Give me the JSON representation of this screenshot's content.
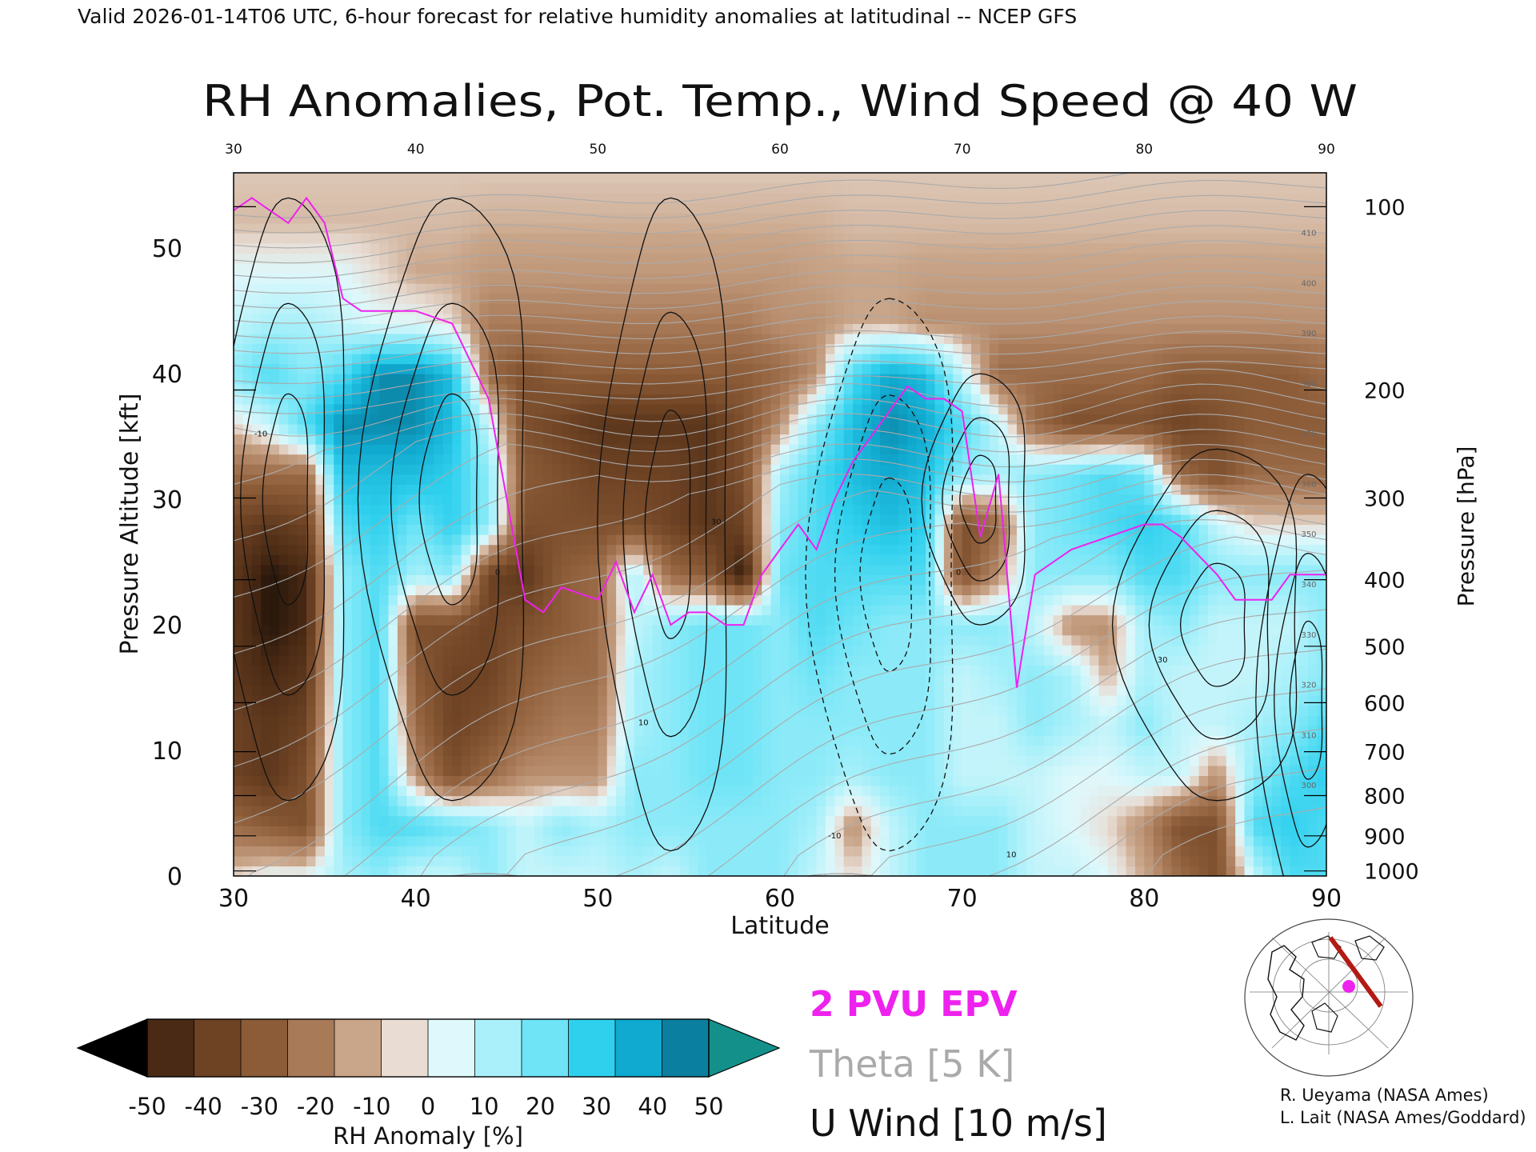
{
  "header": {
    "caption": "Valid 2026-01-14T06 UTC, 6-hour forecast for relative humidity anomalies at latitudinal -- NCEP GFS"
  },
  "chart_data": {
    "type": "heatmap",
    "title": "RH Anomalies, Pot. Temp., Wind Speed @ 40 W",
    "xlabel": "Latitude",
    "ylabel_left": "Pressure Altitude [kft]",
    "ylabel_right": "Pressure [hPa]",
    "xlim": [
      30,
      90
    ],
    "ylim": [
      0,
      56
    ],
    "x_ticks": [
      "30",
      "40",
      "50",
      "60",
      "70",
      "80",
      "90"
    ],
    "y_ticks": [
      "0",
      "10",
      "20",
      "30",
      "40",
      "50"
    ],
    "pressure_ticks": [
      {
        "label": "100",
        "kft": 53.3
      },
      {
        "label": "200",
        "kft": 38.7
      },
      {
        "label": "300",
        "kft": 30.1
      },
      {
        "label": "400",
        "kft": 23.6
      },
      {
        "label": "500",
        "kft": 18.3
      },
      {
        "label": "600",
        "kft": 13.8
      },
      {
        "label": "700",
        "kft": 9.9
      },
      {
        "label": "800",
        "kft": 6.4
      },
      {
        "label": "900",
        "kft": 3.2
      },
      {
        "label": "1000",
        "kft": 0.4
      }
    ],
    "rh_field": {
      "description_free": true,
      "lat": [
        30,
        32,
        34,
        36,
        38,
        40,
        42,
        44,
        46,
        48,
        50,
        52,
        54,
        56,
        58,
        60,
        62,
        64,
        66,
        68,
        70,
        72,
        74,
        76,
        78,
        80,
        82,
        84,
        86,
        88,
        90
      ],
      "kft": [
        0,
        4,
        8,
        12,
        16,
        20,
        24,
        28,
        32,
        36,
        40,
        44,
        48,
        52,
        56
      ],
      "values": [
        [
          0,
          5,
          5,
          15,
          20,
          10,
          10,
          20,
          10,
          10,
          10,
          15,
          10,
          20,
          20,
          20,
          10,
          0,
          10,
          20,
          20,
          20,
          10,
          10,
          5,
          -5,
          -20,
          -30,
          10,
          30,
          30
        ],
        [
          -20,
          -25,
          -30,
          20,
          30,
          30,
          25,
          20,
          10,
          20,
          15,
          20,
          20,
          20,
          20,
          20,
          15,
          -10,
          10,
          20,
          20,
          20,
          10,
          5,
          0,
          -10,
          -30,
          -30,
          30,
          35,
          30
        ],
        [
          -35,
          -40,
          -30,
          20,
          30,
          -10,
          -30,
          -20,
          -10,
          -10,
          -10,
          20,
          20,
          25,
          25,
          20,
          20,
          15,
          20,
          20,
          10,
          10,
          10,
          5,
          5,
          10,
          10,
          -10,
          20,
          30,
          35
        ],
        [
          -35,
          -40,
          -35,
          20,
          30,
          -20,
          -35,
          -30,
          -20,
          -15,
          -15,
          15,
          20,
          25,
          25,
          20,
          20,
          20,
          20,
          20,
          10,
          10,
          20,
          15,
          10,
          20,
          10,
          10,
          15,
          20,
          30
        ],
        [
          -40,
          -45,
          -40,
          20,
          30,
          -25,
          -35,
          -35,
          -25,
          -20,
          -20,
          15,
          20,
          25,
          25,
          20,
          25,
          20,
          20,
          20,
          10,
          15,
          20,
          15,
          -5,
          15,
          10,
          10,
          10,
          15,
          20
        ],
        [
          -40,
          -50,
          -45,
          20,
          30,
          -30,
          -30,
          -35,
          -30,
          -25,
          -20,
          10,
          20,
          25,
          25,
          20,
          30,
          25,
          20,
          20,
          20,
          20,
          10,
          -10,
          -10,
          15,
          20,
          10,
          10,
          10,
          20
        ],
        [
          -40,
          -50,
          -45,
          20,
          30,
          15,
          20,
          -35,
          -40,
          -25,
          -20,
          15,
          -20,
          -25,
          -50,
          25,
          30,
          30,
          30,
          30,
          -30,
          -10,
          20,
          20,
          20,
          30,
          30,
          20,
          20,
          20,
          20
        ],
        [
          -35,
          -40,
          -35,
          30,
          35,
          25,
          35,
          20,
          -30,
          -30,
          -30,
          -30,
          -35,
          -40,
          -35,
          20,
          30,
          35,
          40,
          35,
          -30,
          -20,
          20,
          25,
          30,
          35,
          30,
          10,
          0,
          0,
          0
        ],
        [
          -20,
          -20,
          -20,
          40,
          40,
          40,
          35,
          20,
          -25,
          -30,
          -35,
          -35,
          -35,
          -40,
          -30,
          15,
          30,
          40,
          45,
          40,
          20,
          15,
          20,
          25,
          30,
          25,
          -20,
          -30,
          -20,
          -20,
          -20
        ],
        [
          0,
          10,
          30,
          50,
          50,
          50,
          40,
          10,
          -30,
          -35,
          -40,
          -40,
          -40,
          -40,
          -30,
          -10,
          20,
          40,
          50,
          45,
          30,
          10,
          -20,
          -30,
          -30,
          -30,
          -35,
          -30,
          -25,
          -25,
          -25
        ],
        [
          20,
          30,
          20,
          30,
          50,
          50,
          40,
          -20,
          -30,
          -25,
          -25,
          -25,
          -25,
          -25,
          -25,
          -20,
          -10,
          30,
          45,
          40,
          10,
          -20,
          -20,
          -20,
          -20,
          -20,
          -25,
          -25,
          -25,
          -25,
          -20
        ],
        [
          10,
          15,
          15,
          10,
          5,
          5,
          0,
          -15,
          -15,
          -15,
          -15,
          -15,
          -15,
          -15,
          -15,
          -10,
          -10,
          -5,
          -5,
          -10,
          -10,
          -10,
          -10,
          -10,
          -10,
          -10,
          -10,
          -10,
          -10,
          -10,
          -10
        ],
        [
          5,
          5,
          5,
          5,
          0,
          -5,
          -5,
          -8,
          -8,
          -8,
          -8,
          -8,
          -8,
          -8,
          -8,
          -8,
          -6,
          -5,
          -5,
          -6,
          -6,
          -6,
          -6,
          -6,
          -6,
          -6,
          -6,
          -6,
          -6,
          -6,
          -6
        ],
        [
          -3,
          -3,
          -3,
          -3,
          -3,
          -3,
          -3,
          -4,
          -4,
          -4,
          -4,
          -4,
          -4,
          -4,
          -4,
          -4,
          -4,
          -3,
          -3,
          -3,
          -3,
          -3,
          -3,
          -3,
          -3,
          -3,
          -3,
          -3,
          -3,
          -3,
          -3
        ],
        [
          -2,
          -2,
          -2,
          -2,
          -2,
          -2,
          -2,
          -2,
          -2,
          -2,
          -2,
          -2,
          -2,
          -2,
          -2,
          -2,
          -2,
          -2,
          -2,
          -2,
          -2,
          -2,
          -2,
          -2,
          -2,
          -2,
          -2,
          -2,
          -2,
          -2,
          -2
        ]
      ]
    },
    "epv_2pvu_line": {
      "lat": [
        30,
        31,
        32,
        33,
        34,
        35,
        36,
        37,
        38,
        40,
        42,
        44,
        46,
        47,
        48,
        50,
        51,
        52,
        53,
        54,
        55,
        56,
        57,
        58,
        59,
        60,
        61,
        62,
        63,
        64,
        66,
        67,
        68,
        69,
        70,
        71,
        72,
        73,
        74,
        75,
        76,
        78,
        80,
        81,
        82,
        84,
        85,
        86,
        87,
        88,
        90
      ],
      "kft": [
        53,
        54,
        53,
        52,
        54,
        52,
        46,
        45,
        45,
        45,
        44,
        38,
        22,
        21,
        23,
        22,
        25,
        21,
        24,
        20,
        21,
        21,
        20,
        20,
        24,
        26,
        28,
        26,
        30,
        33,
        37,
        39,
        38,
        38,
        37,
        27,
        32,
        15,
        24,
        25,
        26,
        27,
        28,
        28,
        27,
        24,
        22,
        22,
        22,
        24,
        24
      ]
    },
    "theta_levels": {
      "min": 250,
      "max": 410,
      "step": 5
    },
    "theta_labels": [
      "300",
      "310",
      "320",
      "330",
      "340",
      "350",
      "360",
      "370",
      "380",
      "390",
      "400",
      "410"
    ],
    "wind_levels": [
      -10,
      0,
      10,
      20,
      30
    ],
    "wind_labels": [
      "-10",
      "0",
      "10",
      "30"
    ],
    "colorbar": {
      "label": "RH Anomaly [%]",
      "tick_labels": [
        "-50",
        "-40",
        "-30",
        "-20",
        "-10",
        "0",
        "10",
        "20",
        "30",
        "40",
        "50"
      ],
      "colors": [
        "#000000",
        "#4a2a14",
        "#6e4324",
        "#8c5c38",
        "#a97a58",
        "#c9a589",
        "#e8dcd3",
        "#dff8fb",
        "#a9f0fa",
        "#6ee4f6",
        "#2fd0ee",
        "#10a9cf",
        "#0b7f9f",
        "#14908a"
      ]
    },
    "legend": {
      "epv": "2 PVU EPV",
      "theta": "Theta [5 K]",
      "wind": "U Wind [10 m/s]",
      "epv_color": "#ee22ee",
      "theta_color": "#aaaaaa",
      "wind_color": "#111111"
    },
    "credits": [
      "R. Ueyama (NASA Ames)",
      "L. Lait (NASA Ames/Goddard)"
    ],
    "map_icon": "polar-locator-map-icon"
  }
}
